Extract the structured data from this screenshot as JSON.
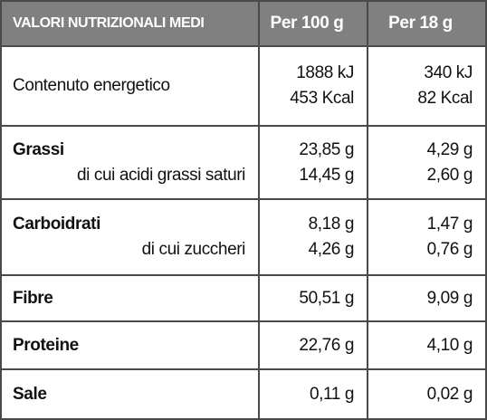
{
  "header": [
    "VALORI NUTRIZIONALI MEDI",
    "Per 100 g",
    "Per 18 g"
  ],
  "rows": [
    {
      "label": "Contenuto energetico",
      "per_100g": [
        "1888 kJ",
        "453 Kcal"
      ],
      "per_18g": [
        "340 kJ",
        "82 Kcal"
      ]
    },
    {
      "label": "Grassi",
      "sublabel": "di cui acidi grassi saturi",
      "per_100g": [
        "23,85 g",
        "14,45 g"
      ],
      "per_18g": [
        "4,29 g",
        "2,60 g"
      ]
    },
    {
      "label": "Carboidrati",
      "sublabel": "di cui zuccheri",
      "per_100g": [
        "8,18 g",
        "4,26 g"
      ],
      "per_18g": [
        "1,47 g",
        "0,76 g"
      ]
    },
    {
      "label": "Fibre",
      "per_100g": [
        "50,51 g"
      ],
      "per_18g": [
        "9,09 g"
      ]
    },
    {
      "label": "Proteine",
      "per_100g": [
        "22,76 g"
      ],
      "per_18g": [
        "4,10 g"
      ]
    },
    {
      "label": "Sale",
      "per_100g": [
        "0,11 g"
      ],
      "per_18g": [
        "0,02 g"
      ]
    }
  ]
}
